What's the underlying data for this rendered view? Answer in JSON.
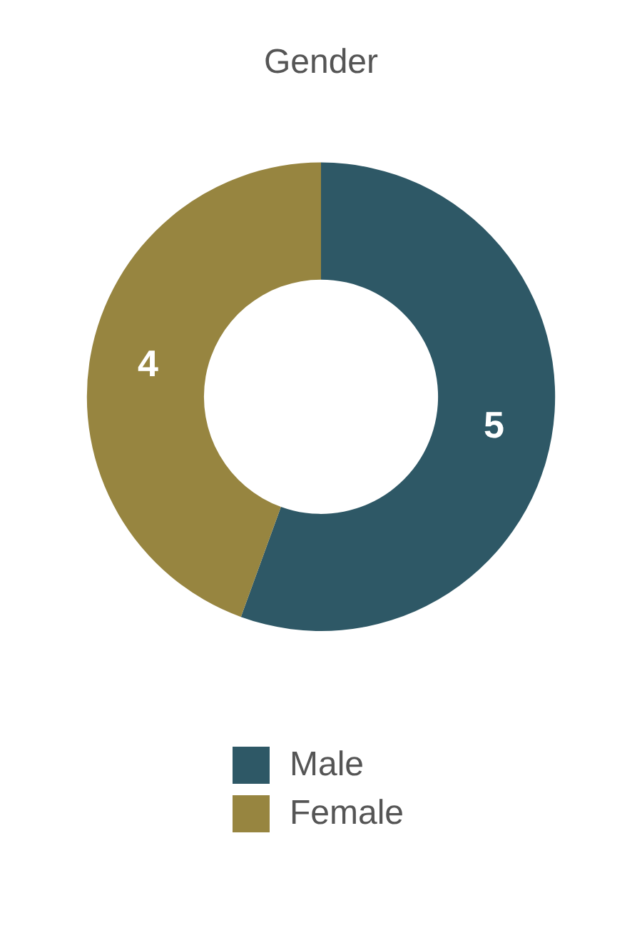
{
  "chart_data": {
    "type": "donut",
    "title": "Gender",
    "categories": [
      "Male",
      "Female"
    ],
    "values": [
      5,
      4
    ],
    "colors": [
      "#2e5866",
      "#978540"
    ],
    "data_labels": true,
    "legend": "bottom"
  }
}
